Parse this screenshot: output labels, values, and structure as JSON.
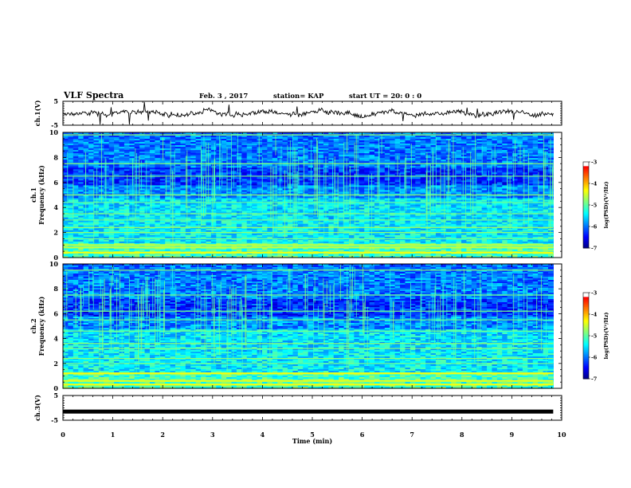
{
  "header": {
    "title": "VLF Spectra",
    "date": "Feb. 3 , 2017",
    "station": "station= KAP",
    "start_time": "start UT = 20: 0 : 0"
  },
  "chart_data": [
    {
      "type": "line",
      "id": "ch1-voltage",
      "ylabel": "ch.1(V)",
      "ylim": [
        -5,
        5
      ],
      "yticks": [
        "5",
        "-5"
      ],
      "xlim": [
        0,
        10
      ],
      "series": [
        {
          "mean": 0,
          "noise_band": 2.5
        }
      ]
    },
    {
      "type": "heatmap",
      "id": "ch1-spectrogram",
      "ylabel": "ch.1\nFrequency (kHz)",
      "ylim": [
        0,
        10
      ],
      "yticks": [
        "0",
        "2",
        "4",
        "6",
        "8",
        "10"
      ],
      "xlim": [
        0,
        9.83
      ],
      "colorbar": {
        "label": "log(PSD)(V²/Hz)",
        "range": [
          -7,
          -3
        ],
        "ticks": [
          "-3",
          "-4",
          "-5",
          "-6",
          "-7"
        ]
      },
      "bands_khz": [
        0.4,
        0.8,
        1.0,
        1.5,
        2.0,
        2.4,
        3.0,
        3.5,
        4.4,
        5.0,
        6.5,
        7.5,
        9.8
      ]
    },
    {
      "type": "heatmap",
      "id": "ch2-spectrogram",
      "ylabel": "ch.2\nFrequency (kHz)",
      "ylim": [
        0,
        10
      ],
      "yticks": [
        "0",
        "2",
        "4",
        "6",
        "8",
        "10"
      ],
      "xlim": [
        0,
        9.83
      ],
      "colorbar": {
        "label": "log(PSD)(V²/Hz)",
        "range": [
          -7,
          -3
        ],
        "ticks": [
          "-3",
          "-4",
          "-5",
          "-6",
          "-7"
        ]
      },
      "bands_khz": [
        0.3,
        0.6,
        1.2,
        2.0,
        2.4,
        3.2,
        3.6,
        4.6,
        5.5,
        6.2,
        7.5,
        9.5
      ]
    },
    {
      "type": "line",
      "id": "ch3-voltage",
      "ylabel": "ch.3(V)",
      "ylim": [
        -5,
        5
      ],
      "yticks": [
        "5",
        "-5"
      ],
      "xlim": [
        0,
        10
      ],
      "series": [
        {
          "mean": -1.5,
          "noise_band": 0.2
        }
      ]
    }
  ],
  "x_axis": {
    "label": "Time (min)",
    "ticks": [
      "0",
      "1",
      "2",
      "3",
      "4",
      "5",
      "6",
      "7",
      "8",
      "9",
      "10"
    ]
  },
  "colors": {
    "colormap": [
      "#00007f",
      "#0000ff",
      "#007fff",
      "#00ffff",
      "#7fff7f",
      "#ffff00",
      "#ff7f00",
      "#ff0000",
      "#ffffff"
    ]
  }
}
